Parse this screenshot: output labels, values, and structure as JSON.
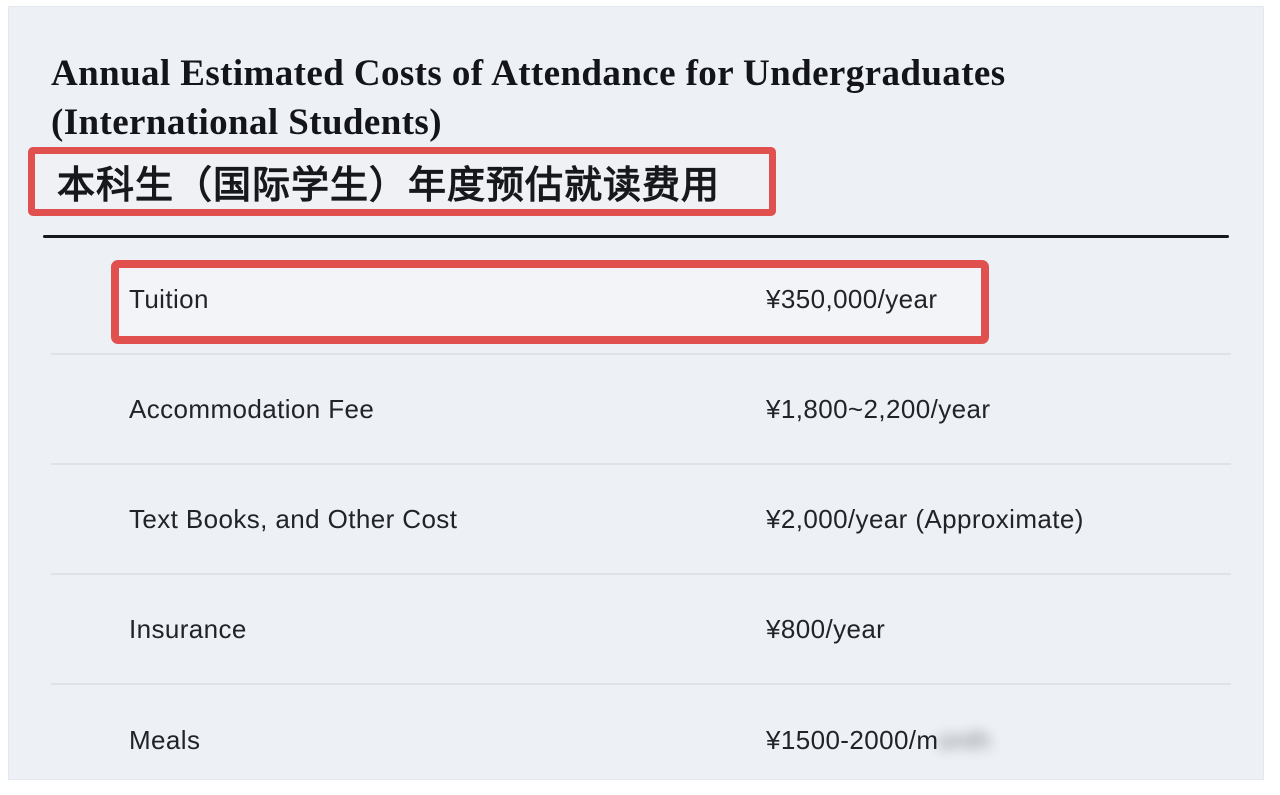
{
  "header": {
    "title_en_line1": "Annual Estimated Costs of Attendance for Undergraduates",
    "title_en_line2": "(International Students)",
    "title_zh": "本科生（国际学生）年度预估就读费用"
  },
  "table": {
    "rows": [
      {
        "label": "Tuition",
        "value": "¥350,000/year",
        "highlighted": true
      },
      {
        "label": "Accommodation Fee",
        "value": "¥1,800~2,200/year",
        "highlighted": false
      },
      {
        "label": "Text Books, and Other Cost",
        "value": "¥2,000/year (Approximate)",
        "highlighted": false
      },
      {
        "label": "Insurance",
        "value": "¥800/year",
        "highlighted": false
      },
      {
        "label": "Meals",
        "value": "¥1500-2000/m",
        "value_blurred_suffix": "onth",
        "highlighted": false
      }
    ]
  },
  "colors": {
    "annotation_red": "#e0504e",
    "card_background": "#edf0f4",
    "rule_black": "#16181d",
    "divider_gray": "#dfe3e9",
    "text_dark": "#212329"
  }
}
